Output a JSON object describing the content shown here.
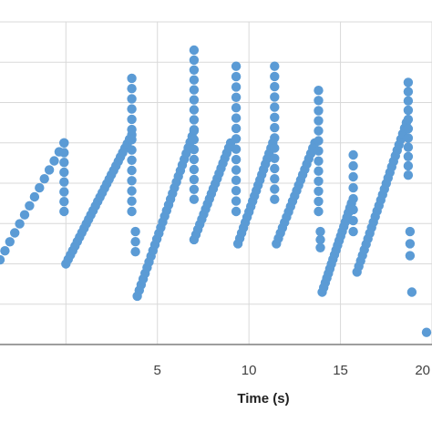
{
  "chart_data": {
    "type": "scatter",
    "xlabel": "Time (s)",
    "ylabel": "",
    "title": "",
    "xlim": [
      -3.6,
      20.0
    ],
    "ylim": [
      0,
      8
    ],
    "x_ticks": [
      5,
      10,
      15,
      20
    ],
    "x_tick_labels": [
      "5",
      "10",
      "15",
      "20"
    ],
    "grid": true,
    "legend": "none",
    "marker_color": "#5b9bd5",
    "grid_color": "#d9d9d9",
    "axis_color": "#7f7f7f",
    "series": [
      {
        "segments": [
          {
            "x_start": -3.6,
            "x_end": -0.1,
            "y_start": 2.1,
            "y_end": 5.0,
            "n": 14
          },
          {
            "x_start": -0.1,
            "x_end": -0.1,
            "y_start": 3.3,
            "y_end": 5.0,
            "n": 8
          },
          {
            "x_start": 0.0,
            "x_end": 3.6,
            "y_start": 2.0,
            "y_end": 5.2,
            "n": 30
          },
          {
            "x_start": 3.6,
            "x_end": 3.6,
            "y_start": 3.3,
            "y_end": 6.6,
            "n": 14
          },
          {
            "x_start": 3.8,
            "x_end": 3.8,
            "y_start": 2.3,
            "y_end": 2.8,
            "n": 3
          },
          {
            "x_start": 3.9,
            "x_end": 7.0,
            "y_start": 1.2,
            "y_end": 5.3,
            "n": 30
          },
          {
            "x_start": 7.0,
            "x_end": 7.0,
            "y_start": 3.6,
            "y_end": 7.3,
            "n": 16
          },
          {
            "x_start": 7.0,
            "x_end": 9.0,
            "y_start": 2.6,
            "y_end": 5.0,
            "n": 20
          },
          {
            "x_start": 9.3,
            "x_end": 9.3,
            "y_start": 3.3,
            "y_end": 6.9,
            "n": 15
          },
          {
            "x_start": 9.4,
            "x_end": 11.3,
            "y_start": 2.5,
            "y_end": 5.0,
            "n": 20
          },
          {
            "x_start": 11.4,
            "x_end": 11.4,
            "y_start": 3.6,
            "y_end": 6.9,
            "n": 14
          },
          {
            "x_start": 11.5,
            "x_end": 13.6,
            "y_start": 2.5,
            "y_end": 5.0,
            "n": 20
          },
          {
            "x_start": 13.8,
            "x_end": 13.8,
            "y_start": 3.3,
            "y_end": 6.3,
            "n": 13
          },
          {
            "x_start": 13.9,
            "x_end": 13.9,
            "y_start": 2.4,
            "y_end": 2.8,
            "n": 3
          },
          {
            "x_start": 14.0,
            "x_end": 15.6,
            "y_start": 1.3,
            "y_end": 3.5,
            "n": 20
          },
          {
            "x_start": 15.7,
            "x_end": 15.7,
            "y_start": 2.8,
            "y_end": 4.7,
            "n": 8
          },
          {
            "x_start": 15.9,
            "x_end": 18.6,
            "y_start": 1.8,
            "y_end": 5.5,
            "n": 28
          },
          {
            "x_start": 18.7,
            "x_end": 18.7,
            "y_start": 4.2,
            "y_end": 6.5,
            "n": 11
          },
          {
            "x_start": 18.8,
            "x_end": 18.8,
            "y_start": 2.2,
            "y_end": 2.8,
            "n": 3
          },
          {
            "x_start": 18.9,
            "x_end": 18.9,
            "y_start": 1.3,
            "y_end": 1.3,
            "n": 1
          },
          {
            "x_start": 19.7,
            "x_end": 19.7,
            "y_start": 0.3,
            "y_end": 0.3,
            "n": 1
          }
        ]
      }
    ]
  }
}
